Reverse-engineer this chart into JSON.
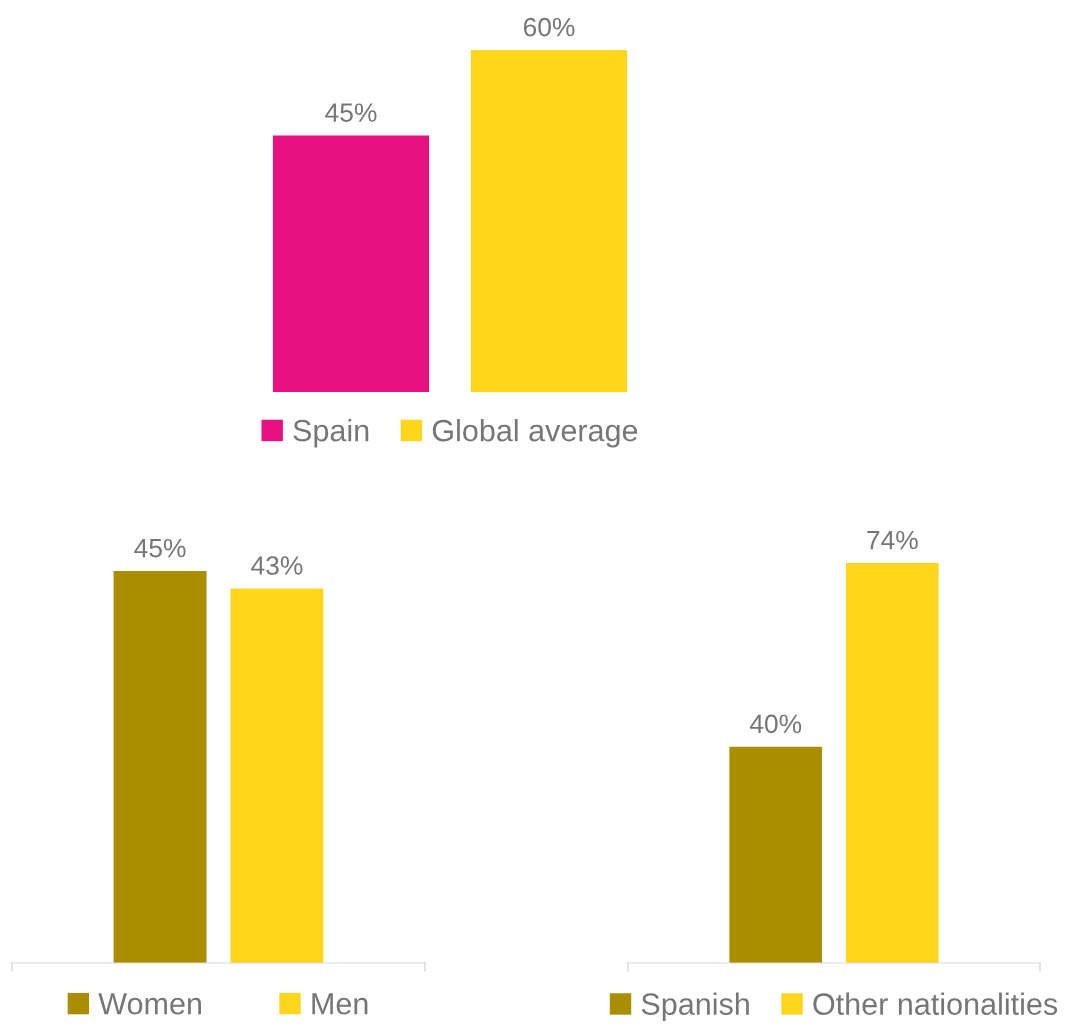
{
  "chart_data": [
    {
      "type": "bar",
      "categories": [
        null
      ],
      "legend": "bottom",
      "series": [
        {
          "name": "Spain",
          "color": "#e6107f",
          "values": [
            45
          ],
          "value_labels": [
            "45%"
          ]
        },
        {
          "name": "Global average",
          "color": "#ffd61c",
          "values": [
            60
          ],
          "value_labels": [
            "60%"
          ]
        }
      ]
    },
    {
      "type": "bar",
      "categories": [
        null
      ],
      "legend": "bottom",
      "series": [
        {
          "name": "Women",
          "color": "#ab8d00",
          "values": [
            45
          ],
          "value_labels": [
            "45%"
          ]
        },
        {
          "name": "Men",
          "color": "#ffd61c",
          "values": [
            43
          ],
          "value_labels": [
            "43%"
          ]
        }
      ]
    },
    {
      "type": "bar",
      "categories": [
        null
      ],
      "legend": "bottom",
      "series": [
        {
          "name": "Spanish",
          "color": "#ab8d00",
          "values": [
            40
          ],
          "value_labels": [
            "40%"
          ]
        },
        {
          "name": "Other nationalities",
          "color": "#ffd61c",
          "values": [
            74
          ],
          "value_labels": [
            "74%"
          ]
        }
      ]
    }
  ]
}
